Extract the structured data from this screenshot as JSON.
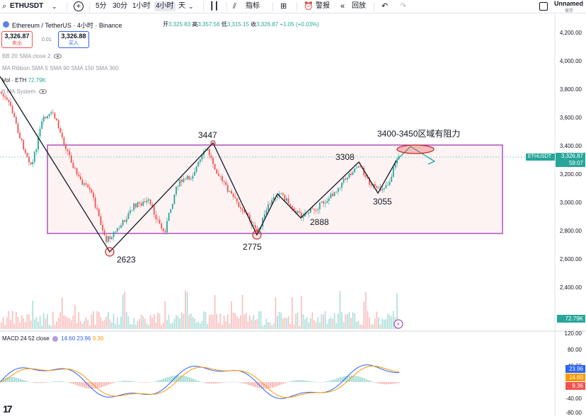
{
  "toolbar": {
    "symbol": "ETHUSDT",
    "timeframes": [
      "5分",
      "30分",
      "1小时",
      "4小时",
      "天"
    ],
    "indicators_label": "指标",
    "alert_label": "警报",
    "replay_label": "回放",
    "profile_name": "Unnamed",
    "profile_sub": "保存"
  },
  "header": {
    "title": "Ethereum / TetherUS · 4小时 · Binance",
    "open_label": "开",
    "open": "3,325.83",
    "high_label": "高",
    "high": "3,357.56",
    "low_label": "低",
    "low": "3,315.15",
    "close_label": "收",
    "close": "3,326.87",
    "change": "+1.05 (+0.03%)"
  },
  "trade": {
    "sell_price": "3,326.87",
    "sell_label": "卖出",
    "spread": "0.01",
    "buy_price": "3,326.88",
    "buy_label": "买入"
  },
  "indicators": {
    "bb": "BB 20 SMA close 2",
    "ribbon": "MA Ribbon SMA 5 SMA 90 SMA 150 SMA 360",
    "vol_label": "Vol · ETH",
    "vol_value": "72.79K",
    "system": "6 MA System"
  },
  "price_axis": [
    "4,200.00",
    "4,000.00",
    "3,800.00",
    "3,600.00",
    "3,400.00",
    "3,200.00",
    "3,000.00",
    "2,800.00",
    "2,600.00",
    "2,400.00"
  ],
  "price_tag": {
    "symbol": "ETHUSDT",
    "price": "3,326.87",
    "countdown": "59:07"
  },
  "volume_tag": "72.79K",
  "macd": {
    "label": "MACD 24 52 close",
    "v1": "14.60",
    "v2": "23.96",
    "v3": "9.36",
    "axis": [
      "120.00",
      "80.00",
      "40.00",
      "-40.00",
      "-80.00"
    ],
    "tag_blue": "23.96",
    "tag_orange": "14.60",
    "tag_red": "9.36"
  },
  "annotations": {
    "p2623": "2623",
    "p3447": "3447",
    "p2775": "2775",
    "p2888": "2888",
    "p3308": "3308",
    "p3055": "3055",
    "resistance": "3400-3450区域有阻力"
  },
  "colors": {
    "up": "#26a69a",
    "down": "#ef5350",
    "zone": "#9c27b0",
    "macd_blue": "#2962ff",
    "macd_orange": "#ff9800",
    "tag_price": "#26a69a"
  },
  "icons": [
    "add-icon",
    "candles-icon",
    "indicators-icon",
    "templates-icon",
    "alert-icon",
    "replay-icon",
    "undo-icon",
    "redo-icon",
    "layout-icon"
  ]
}
